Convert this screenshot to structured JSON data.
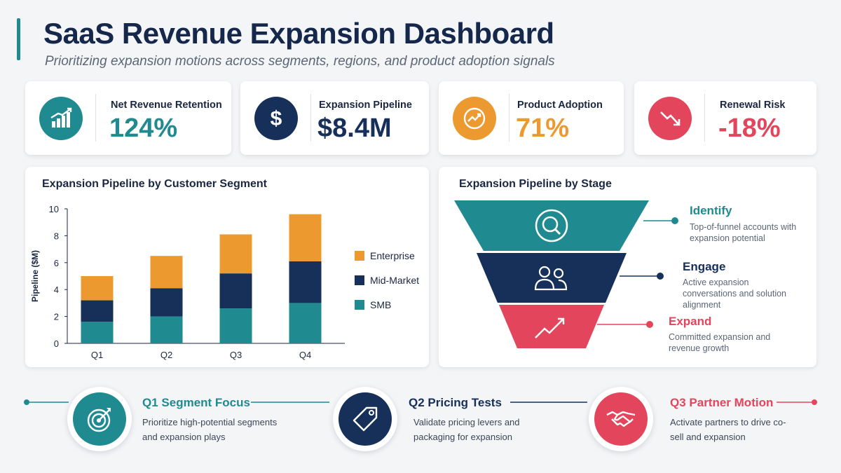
{
  "header": {
    "title": "SaaS Revenue Expansion Dashboard",
    "subtitle": "Prioritizing expansion motions across segments, regions, and product adoption signals"
  },
  "colors": {
    "teal": "#1f8a8f",
    "navy": "#16305a",
    "orange": "#ec9a2f",
    "red": "#e3465c"
  },
  "kpis": [
    {
      "label": "Net Revenue Retention",
      "value": "124%",
      "icon": "bar-growth-icon",
      "color": "#1f8a8f"
    },
    {
      "label": "Expansion Pipeline",
      "value": "$8.4M",
      "icon": "dollar-icon",
      "color": "#16305a"
    },
    {
      "label": "Product Adoption",
      "value": "71%",
      "icon": "adoption-icon",
      "color": "#ec9a2f"
    },
    {
      "label": "Renewal Risk",
      "value": "-18%",
      "icon": "down-trend-icon",
      "color": "#e3465c"
    }
  ],
  "chart_data": {
    "type": "bar",
    "stacked": true,
    "title": "Expansion Pipeline by Customer Segment",
    "ylabel": "Pipeline ($M)",
    "xlabel": "",
    "categories": [
      "Q1",
      "Q2",
      "Q3",
      "Q4"
    ],
    "ylim": [
      0,
      10
    ],
    "yticks": [
      "0",
      "2",
      "4",
      "6",
      "8",
      "10"
    ],
    "series": [
      {
        "name": "SMB",
        "values": [
          1.6,
          2.0,
          2.6,
          3.0
        ],
        "color": "#1f8a8f"
      },
      {
        "name": "Mid-Market",
        "values": [
          1.6,
          2.1,
          2.6,
          3.1
        ],
        "color": "#16305a"
      },
      {
        "name": "Enterprise",
        "values": [
          1.8,
          2.4,
          2.9,
          3.5
        ],
        "color": "#ec9a2f"
      }
    ],
    "legend_order": [
      "Enterprise",
      "Mid-Market",
      "SMB"
    ],
    "legend_position": "right",
    "grid": false
  },
  "funnel": {
    "title": "Expansion Pipeline by Stage",
    "stages": [
      {
        "name": "Identify",
        "desc": "Top-of-funnel accounts with expansion potential",
        "icon": "search-icon",
        "color": "#1f8a8f"
      },
      {
        "name": "Engage",
        "desc": "Active expansion conversations and solution alignment",
        "icon": "users-icon",
        "color": "#16305a"
      },
      {
        "name": "Expand",
        "desc": "Committed expansion and revenue growth",
        "icon": "growth-arrow-icon",
        "color": "#e3465c"
      }
    ]
  },
  "timeline": [
    {
      "title": "Q1 Segment Focus",
      "desc": "Prioritize high-potential segments and expansion plays",
      "icon": "target-icon",
      "color": "#1f8a8f"
    },
    {
      "title": "Q2 Pricing Tests",
      "desc": "Validate pricing levers and packaging for expansion",
      "icon": "price-tag-icon",
      "color": "#16305a"
    },
    {
      "title": "Q3 Partner Motion",
      "desc": "Activate partners to drive co-sell and expansion",
      "icon": "handshake-icon",
      "color": "#e3465c"
    }
  ]
}
